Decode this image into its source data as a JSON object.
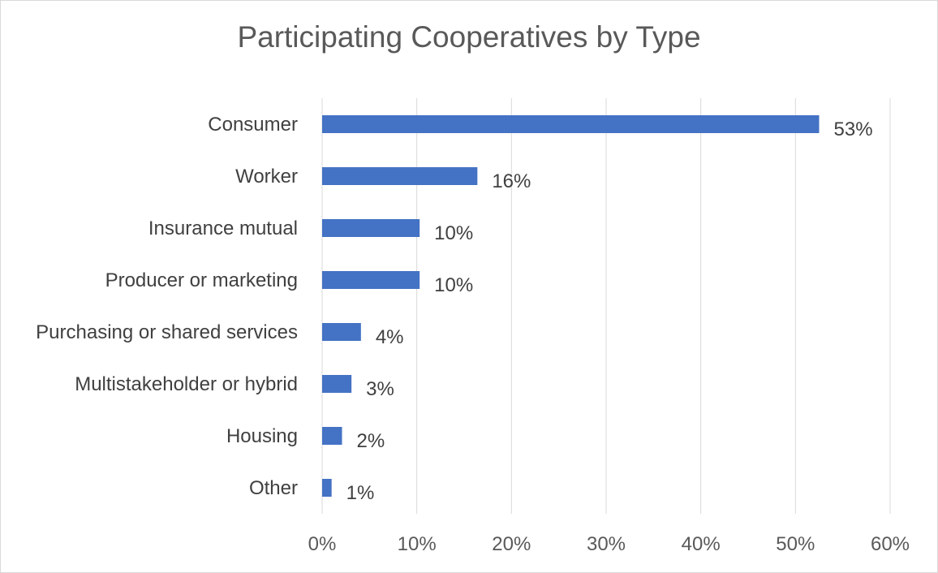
{
  "chart_data": {
    "type": "bar",
    "orientation": "horizontal",
    "title": "Participating Cooperatives by Type",
    "categories": [
      "Consumer",
      "Worker",
      "Insurance mutual",
      "Producer or marketing",
      "Purchasing or shared services",
      "Multistakeholder or hybrid",
      "Housing",
      "Other"
    ],
    "values": [
      52.5,
      16.4,
      10.3,
      10.3,
      4.1,
      3.1,
      2.1,
      1.0
    ],
    "data_labels": [
      "53%",
      "16%",
      "10%",
      "10%",
      "4%",
      "3%",
      "2%",
      "1%"
    ],
    "xlim": [
      0,
      60
    ],
    "x_ticks": [
      "0%",
      "10%",
      "20%",
      "30%",
      "40%",
      "50%",
      "60%"
    ],
    "xlabel": "",
    "ylabel": "",
    "grid": "vertical",
    "legend": "none",
    "colors": {
      "bar": "#4472c4",
      "grid": "#d9d9d9",
      "text": "#404040",
      "title": "#595959"
    }
  }
}
